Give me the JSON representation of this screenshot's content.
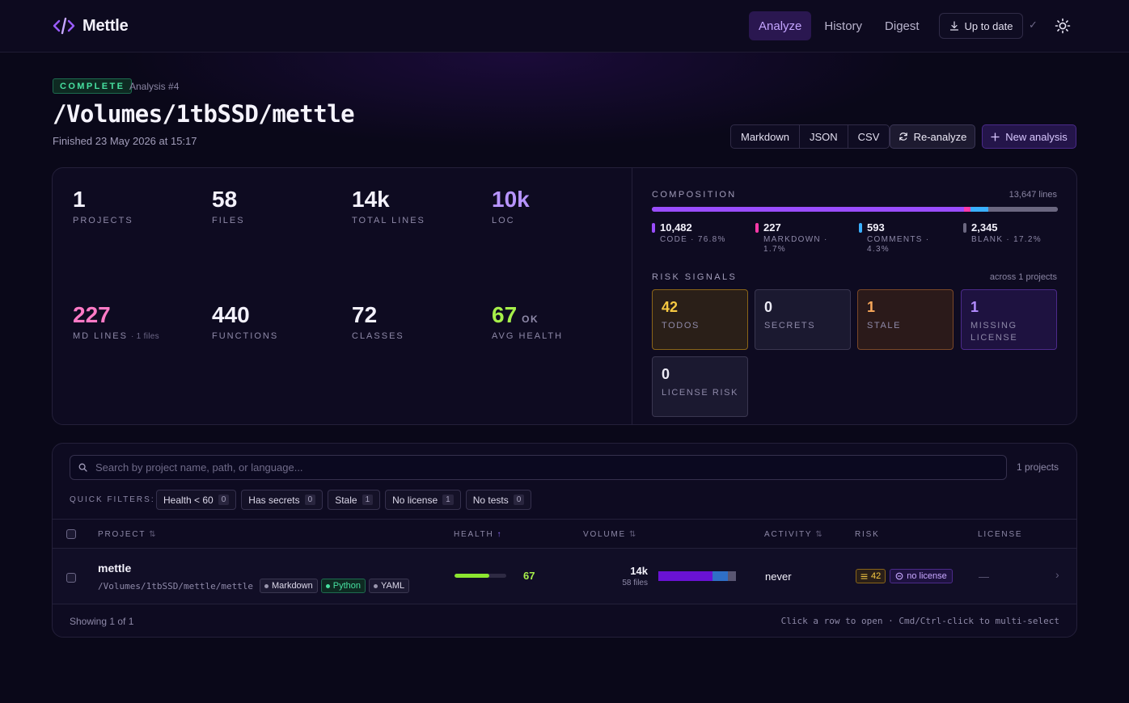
{
  "header": {
    "app_name": "Mettle",
    "nav": [
      {
        "label": "Analyze",
        "active": true
      },
      {
        "label": "History",
        "active": false
      },
      {
        "label": "Digest",
        "active": false
      }
    ],
    "update_label": "Up to date",
    "check_glyph": "✓",
    "icons": {
      "logo": "code-brackets-icon",
      "update": "download-icon",
      "theme": "sun-icon"
    }
  },
  "analysis": {
    "status": "COMPLETE",
    "number_label": "Analysis #4",
    "path": "/Volumes/1tbSSD/mettle",
    "finished": "Finished 23 May 2026 at 15:17"
  },
  "actions": {
    "exports": [
      "Markdown",
      "JSON",
      "CSV"
    ],
    "reanalyze": "Re-analyze",
    "new_analysis": "New analysis"
  },
  "stats": [
    {
      "value": "1",
      "label": "PROJECTS",
      "color": "#f3f1fb"
    },
    {
      "value": "58",
      "label": "FILES",
      "color": "#f3f1fb"
    },
    {
      "value": "14k",
      "label": "TOTAL LINES",
      "color": "#f3f1fb"
    },
    {
      "value": "10k",
      "label": "LOC",
      "color": "#b794ff"
    },
    {
      "value": "227",
      "label": "MD LINES",
      "sub": "· 1 files",
      "color": "#ff7ac6"
    },
    {
      "value": "440",
      "label": "FUNCTIONS",
      "color": "#f3f1fb"
    },
    {
      "value": "72",
      "label": "CLASSES",
      "color": "#f3f1fb"
    },
    {
      "value": "67",
      "label": "AVG HEALTH",
      "tag": "OK",
      "color": "#a6ef4a"
    }
  ],
  "composition": {
    "title": "COMPOSITION",
    "total_label": "13,647 lines",
    "segments": [
      {
        "value": "10,482",
        "label": "CODE · 76.8%",
        "fraction": 0.768,
        "color": "#9a4dff"
      },
      {
        "value": "227",
        "label": "MARKDOWN · 1.7%",
        "fraction": 0.017,
        "color": "#ff3aa8"
      },
      {
        "value": "593",
        "label": "COMMENTS · 4.3%",
        "fraction": 0.043,
        "color": "#3ab0ff"
      },
      {
        "value": "2,345",
        "label": "BLANK · 17.2%",
        "fraction": 0.172,
        "color": "#6b6780"
      }
    ]
  },
  "risk": {
    "title": "RISK SIGNALS",
    "meta": "across 1 projects",
    "tiles": [
      {
        "value": "42",
        "label": "TODOS",
        "style": "todos"
      },
      {
        "value": "0",
        "label": "SECRETS",
        "style": "neutral"
      },
      {
        "value": "1",
        "label": "STALE",
        "style": "stale"
      },
      {
        "value": "1",
        "label": "MISSING LICENSE",
        "style": "license"
      },
      {
        "value": "0",
        "label": "LICENSE RISK",
        "style": "neutral"
      }
    ]
  },
  "projects": {
    "search_placeholder": "Search by project name, path, or language...",
    "count_label": "1 projects",
    "quick_filters_label": "QUICK FILTERS:",
    "quick_filters": [
      {
        "label": "Health < 60",
        "count": "0"
      },
      {
        "label": "Has secrets",
        "count": "0"
      },
      {
        "label": "Stale",
        "count": "1"
      },
      {
        "label": "No license",
        "count": "1"
      },
      {
        "label": "No tests",
        "count": "0"
      }
    ],
    "columns": [
      {
        "label": "PROJECT",
        "sort": "⇅"
      },
      {
        "label": "HEALTH",
        "sort": "↑"
      },
      {
        "label": "VOLUME",
        "sort": "⇅"
      },
      {
        "label": "ACTIVITY",
        "sort": "⇅"
      },
      {
        "label": "RISK",
        "sort": ""
      },
      {
        "label": "LICENSE",
        "sort": ""
      }
    ],
    "rows": [
      {
        "name": "mettle",
        "path": "/Volumes/1tbSSD/mettle/mettle",
        "languages": [
          "Markdown",
          "Python",
          "YAML"
        ],
        "health": "67",
        "health_fraction": 0.67,
        "volume_lines": "14k",
        "volume_files": "58 files",
        "volume_mix": [
          {
            "fraction": 0.7,
            "color": "#6a12d4"
          },
          {
            "fraction": 0.2,
            "color": "#2f6fc6"
          },
          {
            "fraction": 0.1,
            "color": "#5a5672"
          }
        ],
        "activity": "never",
        "todo_count": "42",
        "license_badge": "no license",
        "license": "—"
      }
    ],
    "footer_left": "Showing 1 of 1",
    "footer_right": "Click a row to open · Cmd/Ctrl-click to multi-select"
  }
}
